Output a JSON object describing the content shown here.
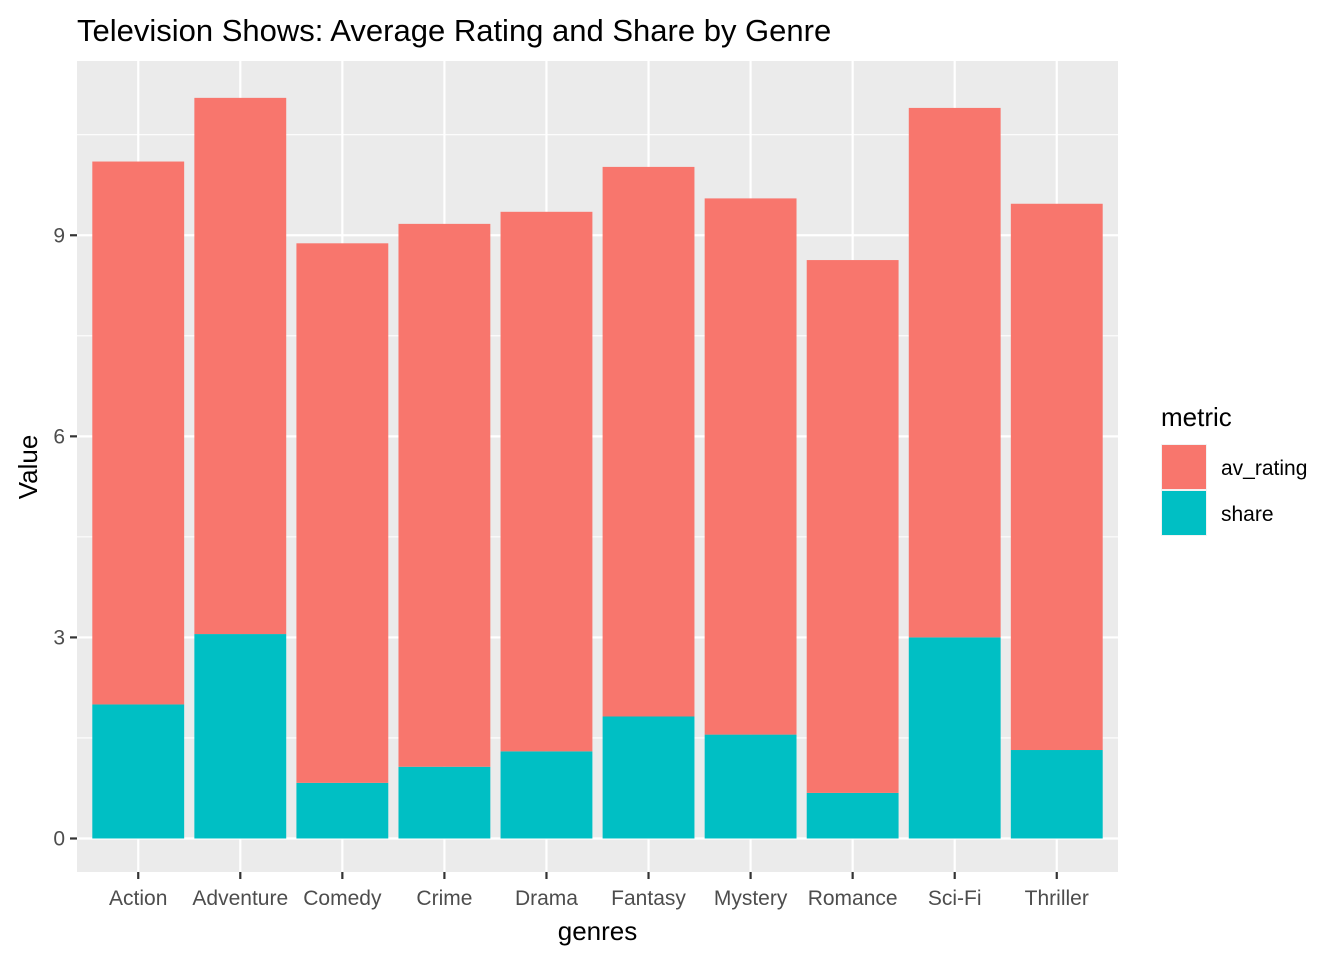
{
  "chart_data": {
    "type": "bar",
    "stacked": true,
    "title": "Television Shows: Average Rating and Share by Genre",
    "xlabel": "genres",
    "ylabel": "Value",
    "ylim": [
      -0.5,
      11.6
    ],
    "yticks": [
      0,
      3,
      6,
      9
    ],
    "grid": true,
    "legend_placement": "right",
    "categories": [
      "Action",
      "Adventure",
      "Comedy",
      "Crime",
      "Drama",
      "Fantasy",
      "Mystery",
      "Romance",
      "Sci-Fi",
      "Thriller"
    ],
    "legend": {
      "title": "metric"
    },
    "series": [
      {
        "name": "av_rating",
        "color": "#F8766D",
        "values": [
          8.1,
          8.0,
          8.05,
          8.1,
          8.05,
          8.2,
          8.0,
          7.95,
          7.9,
          8.15
        ]
      },
      {
        "name": "share",
        "color": "#00BFC4",
        "values": [
          2.0,
          3.05,
          0.83,
          1.07,
          1.3,
          1.82,
          1.55,
          0.68,
          3.0,
          1.32
        ]
      }
    ]
  }
}
